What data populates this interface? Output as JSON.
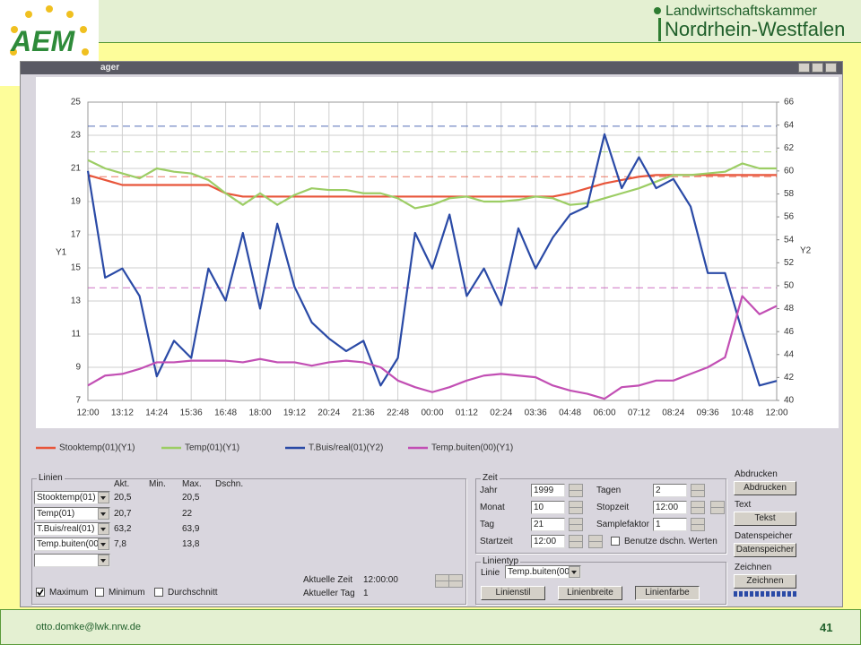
{
  "header": {
    "logo": "AEM",
    "org_line1": "Landwirtschaftskammer",
    "org_line2": "Nordrhein-Westfalen"
  },
  "window": {
    "title": "ager"
  },
  "chart_data": {
    "type": "line",
    "categories": [
      "12:00",
      null,
      "13:12",
      null,
      "14:24",
      null,
      "15:36",
      null,
      "16:48",
      null,
      "18:00",
      null,
      "19:12",
      null,
      "20:24",
      null,
      "21:36",
      null,
      "22:48",
      null,
      "00:00",
      null,
      "01:12",
      null,
      "02:24",
      null,
      "03:36",
      null,
      "04:48",
      null,
      "06:00",
      null,
      "07:12",
      null,
      "08:24",
      null,
      "09:36",
      null,
      "10:48",
      null,
      "12:00"
    ],
    "series": [
      {
        "name": "Stooktemp(01)(Y1)",
        "color": "#e8553a",
        "axis": "y1",
        "values": [
          20.6,
          20.3,
          20,
          20,
          20,
          20,
          20,
          20,
          19.5,
          19.3,
          19.3,
          19.3,
          19.3,
          19.3,
          19.3,
          19.3,
          19.3,
          19.3,
          19.3,
          19.3,
          19.3,
          19.3,
          19.3,
          19.3,
          19.3,
          19.3,
          19.3,
          19.3,
          19.5,
          19.8,
          20.1,
          20.3,
          20.5,
          20.6,
          20.6,
          20.6,
          20.6,
          20.6,
          20.6,
          20.6,
          20.6
        ]
      },
      {
        "name": "Temp(01)(Y1)",
        "color": "#9ccd64",
        "axis": "y1",
        "values": [
          21.5,
          21,
          20.7,
          20.4,
          21,
          20.8,
          20.7,
          20.3,
          19.5,
          18.8,
          19.5,
          18.8,
          19.4,
          19.8,
          19.7,
          19.7,
          19.5,
          19.5,
          19.2,
          18.6,
          18.8,
          19.2,
          19.3,
          19,
          19,
          19.1,
          19.3,
          19.2,
          18.8,
          18.9,
          19.2,
          19.5,
          19.8,
          20.2,
          20.6,
          20.6,
          20.7,
          20.8,
          21.3,
          21,
          21
        ]
      },
      {
        "name": "T.Buis/real(01)(Y2)",
        "color": "#2a4aa6",
        "axis": "y2",
        "values": [
          60,
          50.7,
          51.5,
          49.1,
          42.1,
          45.2,
          43.7,
          51.5,
          48.7,
          54.6,
          48,
          55.4,
          49.9,
          46.8,
          45.4,
          44.3,
          45.2,
          41.3,
          43.7,
          54.6,
          51.5,
          56.2,
          49.1,
          51.5,
          48.3,
          55,
          51.5,
          54.2,
          56.2,
          56.9,
          63.2,
          58.5,
          61.2,
          58.5,
          59.3,
          56.9,
          51.1,
          51.1,
          46,
          41.3,
          41.7
        ]
      },
      {
        "name": "Temp.buiten(00)(Y1)",
        "color": "#c24fb4",
        "axis": "y1",
        "values": [
          7.9,
          8.5,
          8.6,
          8.9,
          9.3,
          9.3,
          9.4,
          9.4,
          9.4,
          9.3,
          9.5,
          9.3,
          9.3,
          9.1,
          9.3,
          9.4,
          9.3,
          9,
          8.2,
          7.8,
          7.5,
          7.8,
          8.2,
          8.5,
          8.6,
          8.5,
          8.4,
          7.9,
          7.6,
          7.4,
          7.1,
          7.8,
          7.9,
          8.2,
          8.2,
          8.6,
          9,
          9.6,
          13.3,
          12.2,
          12.7
        ]
      }
    ],
    "ylim": [
      7,
      25
    ],
    "yticks": [
      7,
      9,
      11,
      13,
      15,
      17,
      19,
      21,
      23,
      25
    ],
    "y2lim": [
      40,
      66
    ],
    "y2ticks": [
      40,
      42,
      44,
      46,
      48,
      50,
      52,
      54,
      56,
      58,
      60,
      62,
      64,
      66
    ],
    "ylabel": "Y1",
    "y2label": "Y2",
    "grid": true
  },
  "lines_panel": {
    "title": "Linien",
    "columns": [
      "Akt.",
      "Min.",
      "Max.",
      "Dschn."
    ],
    "rows": [
      {
        "line": "Stooktemp(01)",
        "current": "20,5",
        "max": {
          "value": 20.5,
          "label": "20,5"
        }
      },
      {
        "line": "Temp(01)",
        "current": "20,7",
        "max": {
          "value": 22,
          "label": "22"
        }
      },
      {
        "line": "T.Buis/real(01)",
        "current": "63,2",
        "max": {
          "value": 63.9,
          "label": "63,9"
        }
      },
      {
        "line": "Temp.buiten(00",
        "current": "7,8",
        "max": {
          "value": 13.8,
          "label": "13,8"
        }
      }
    ],
    "options": [
      {
        "label": "Maximum",
        "checked": true
      },
      {
        "label": "Minimum",
        "checked": false
      },
      {
        "label": "Durchschnitt",
        "checked": false
      }
    ],
    "time_label": "Aktuelle Zeit",
    "time": "12:00:00",
    "day_label": "Aktueller Tag",
    "day": "1"
  },
  "time_panel": {
    "title": "Zeit",
    "left": [
      {
        "label": "Jahr",
        "value": "1999"
      },
      {
        "label": "Monat",
        "value": "10"
      },
      {
        "label": "Tag",
        "value": "21"
      },
      {
        "label": "Startzeit",
        "value": "12:00"
      }
    ],
    "right": [
      {
        "label": "Tagen",
        "value": "2"
      },
      {
        "label": "Stopzeit",
        "value": "12:00"
      },
      {
        "label": "Samplefaktor",
        "value": "1"
      }
    ],
    "average_option": {
      "label": "Benutze dschn. Werten",
      "checked": false
    }
  },
  "line_type_panel": {
    "title": "Linientyp",
    "line_label": "Linie",
    "line_value": "Temp.buiten(00",
    "buttons": [
      "Linienstil",
      "Linienbreite",
      "Linienfarbe"
    ]
  },
  "side_panels": [
    {
      "title": "Abdrucken",
      "button": "Abdrucken"
    },
    {
      "title": "Text",
      "button": "Tekst"
    },
    {
      "title": "Datenspeicher",
      "button": "Datenspeicher"
    },
    {
      "title": "Zeichnen",
      "button": "Zeichnen"
    }
  ],
  "footer": {
    "email": "otto.domke@lwk.nrw.de",
    "page": "41"
  }
}
